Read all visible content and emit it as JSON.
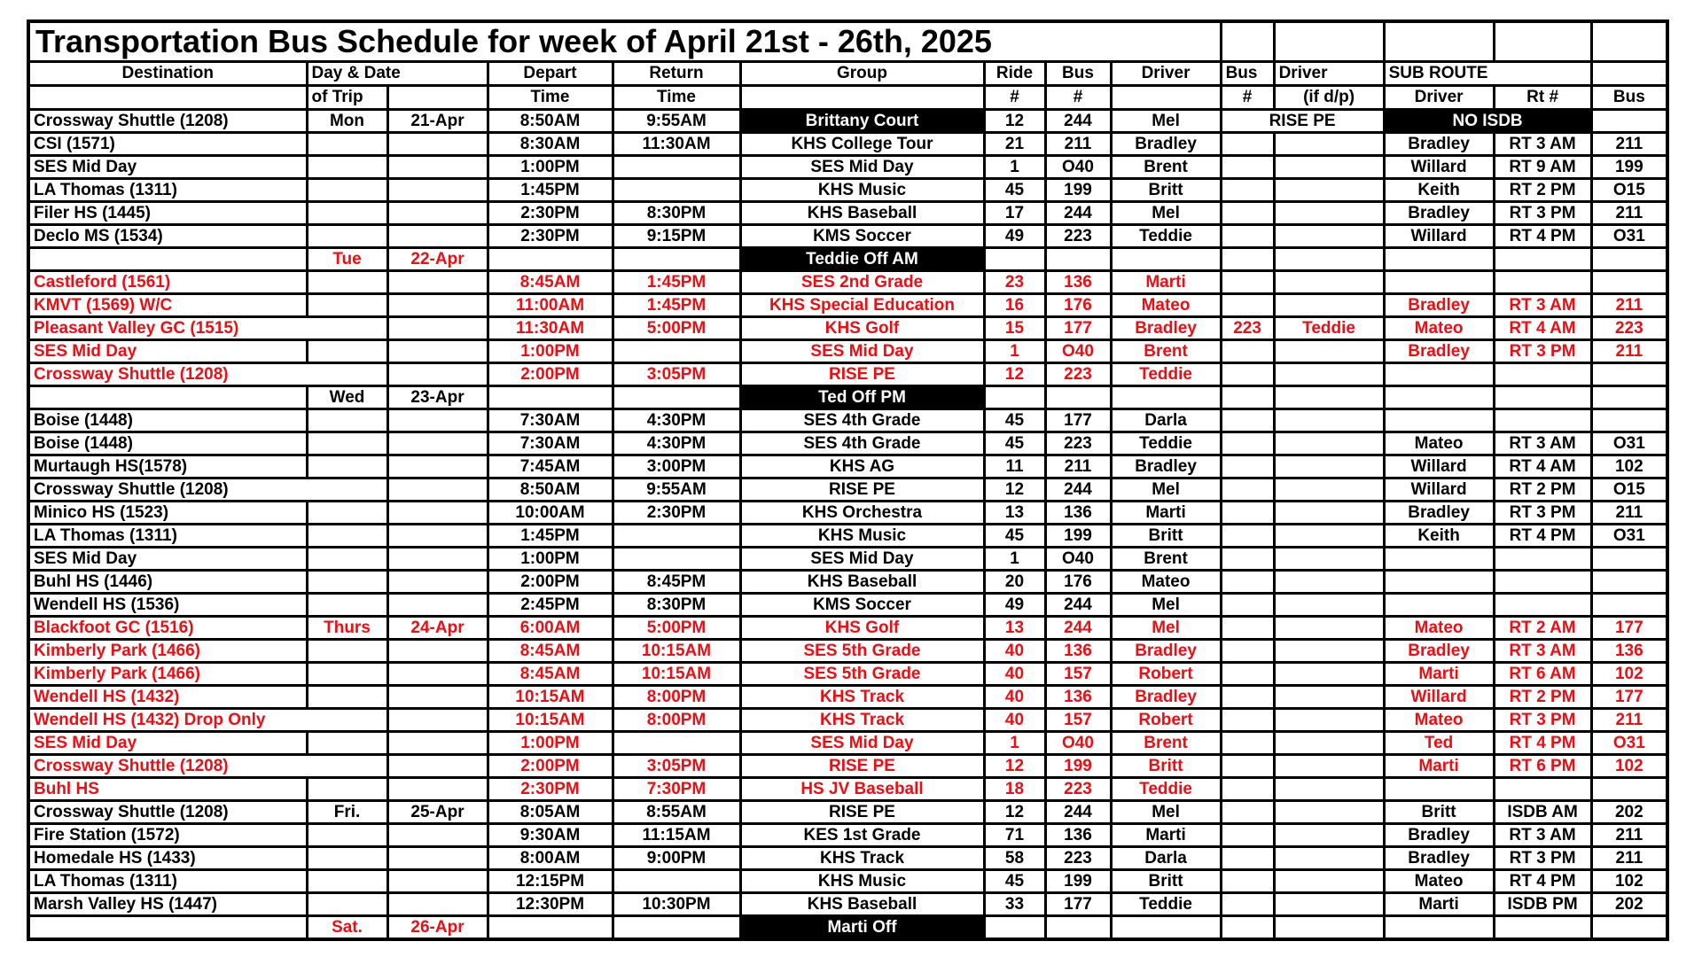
{
  "title": "Transportation Bus Schedule for week of April 21st - 26th, 2025",
  "colors": {
    "red": "#ee0d12",
    "highlight_bg": "#000000",
    "highlight_fg": "#ffffff",
    "grid": "#000000"
  },
  "header": {
    "destination": "Destination",
    "day_date": "Day & Date",
    "depart": "Depart",
    "return": "Return",
    "group": "Group",
    "ride": "Ride",
    "bus": "Bus",
    "driver": "Driver",
    "bus2": "Bus",
    "driver2": "Driver",
    "sub_route": "SUB ROUTE"
  },
  "header2": {
    "of_trip": "of Trip",
    "time": "Time",
    "hash": "#",
    "if_dp": "(if d/p)",
    "sub_driver": "Driver",
    "sub_rt": "Rt #",
    "sub_bus": "Bus"
  },
  "rows": [
    {
      "dest": "Crossway Shuttle (1208)",
      "day": "Mon",
      "date": "21-Apr",
      "depart": "8:50AM",
      "ret": "9:55AM",
      "group": "Brittany Court",
      "group_hl": true,
      "ride": "12",
      "bus": "244",
      "driver": "Mel",
      "mid_span": "RISE PE",
      "sub_span": "NO ISDB",
      "sub_bus": ""
    },
    {
      "dest": "CSI (1571)",
      "depart": "8:30AM",
      "ret": "11:30AM",
      "group": "KHS College Tour",
      "ride": "21",
      "bus": "211",
      "driver": "Bradley",
      "sub_driver": "Bradley",
      "sub_rt": "RT 3 AM",
      "sub_bus": "211"
    },
    {
      "dest": "SES Mid Day",
      "depart": "1:00PM",
      "group": "SES Mid Day",
      "ride": "1",
      "bus": "O40",
      "driver": "Brent",
      "sub_driver": "Willard",
      "sub_rt": "RT 9 AM",
      "sub_bus": "199"
    },
    {
      "dest": "LA Thomas (1311)",
      "depart": "1:45PM",
      "group": "KHS Music",
      "ride": "45",
      "bus": "199",
      "driver": "Britt",
      "sub_driver": "Keith",
      "sub_rt": "RT 2 PM",
      "sub_bus": "O15"
    },
    {
      "dest": "Filer HS (1445)",
      "depart": "2:30PM",
      "ret": "8:30PM",
      "group": "KHS Baseball",
      "ride": "17",
      "bus": "244",
      "driver": "Mel",
      "sub_driver": "Bradley",
      "sub_rt": "RT 3 PM",
      "sub_bus": "211"
    },
    {
      "dest": "Declo MS (1534)",
      "depart": "2:30PM",
      "ret": "9:15PM",
      "group": "KMS Soccer",
      "ride": "49",
      "bus": "223",
      "driver": "Teddie",
      "sub_driver": "Willard",
      "sub_rt": "RT 4 PM",
      "sub_bus": "O31"
    },
    {
      "day": "Tue",
      "date": "22-Apr",
      "group": "Teddie Off AM",
      "group_hl": true,
      "red": true
    },
    {
      "dest": "Castleford (1561)",
      "red": true,
      "depart": "8:45AM",
      "ret": "1:45PM",
      "group": "SES 2nd Grade",
      "ride": "23",
      "bus": "136",
      "driver": "Marti"
    },
    {
      "dest": "KMVT (1569) W/C",
      "red": true,
      "depart": "11:00AM",
      "ret": "1:45PM",
      "group": "KHS Special Education",
      "ride": "16",
      "bus": "176",
      "driver": "Mateo",
      "sub_driver": "Bradley",
      "sub_rt": "RT 3 AM",
      "sub_bus": "211"
    },
    {
      "dest": "Pleasant Valley GC (1515)",
      "red": true,
      "merge_dest": true,
      "depart": "11:30AM",
      "ret": "5:00PM",
      "group": "KHS Golf",
      "ride": "15",
      "bus": "177",
      "driver": "Bradley",
      "bus2": "223",
      "driver2": "Teddie",
      "sub_driver": "Mateo",
      "sub_rt": "RT 4 AM",
      "sub_bus": "223"
    },
    {
      "dest": "SES Mid Day",
      "red": true,
      "depart": "1:00PM",
      "group": "SES Mid Day",
      "ride": "1",
      "bus": "O40",
      "driver": "Brent",
      "sub_driver": "Bradley",
      "sub_rt": "RT 3 PM",
      "sub_bus": "211"
    },
    {
      "dest": "Crossway Shuttle (1208)",
      "red": true,
      "merge_dest": true,
      "depart": "2:00PM",
      "ret": "3:05PM",
      "group": "RISE PE",
      "ride": "12",
      "bus": "223",
      "driver": "Teddie"
    },
    {
      "day": "Wed",
      "date": "23-Apr",
      "group": "Ted Off PM",
      "group_hl": true
    },
    {
      "dest": "Boise (1448)",
      "depart": "7:30AM",
      "ret": "4:30PM",
      "group": "SES 4th Grade",
      "ride": "45",
      "bus": "177",
      "driver": "Darla"
    },
    {
      "dest": "Boise (1448)",
      "depart": "7:30AM",
      "ret": "4:30PM",
      "group": "SES 4th Grade",
      "ride": "45",
      "bus": "223",
      "driver": "Teddie",
      "sub_driver": "Mateo",
      "sub_rt": "RT 3 AM",
      "sub_bus": "O31"
    },
    {
      "dest": "Murtaugh HS(1578)",
      "depart": "7:45AM",
      "ret": "3:00PM",
      "group": "KHS AG",
      "ride": "11",
      "bus": "211",
      "driver": "Bradley",
      "sub_driver": "Willard",
      "sub_rt": "RT 4 AM",
      "sub_bus": "102"
    },
    {
      "dest": "Crossway Shuttle (1208)",
      "merge_dest": true,
      "depart": "8:50AM",
      "ret": "9:55AM",
      "group": "RISE PE",
      "ride": "12",
      "bus": "244",
      "driver": "Mel",
      "sub_driver": "Willard",
      "sub_rt": "RT 2 PM",
      "sub_bus": "O15"
    },
    {
      "dest": "Minico HS (1523)",
      "depart": "10:00AM",
      "ret": "2:30PM",
      "group": "KHS Orchestra",
      "ride": "13",
      "bus": "136",
      "driver": "Marti",
      "sub_driver": "Bradley",
      "sub_rt": "RT 3 PM",
      "sub_bus": "211"
    },
    {
      "dest": "LA Thomas (1311)",
      "depart": "1:45PM",
      "group": "KHS Music",
      "ride": "45",
      "bus": "199",
      "driver": "Britt",
      "sub_driver": "Keith",
      "sub_rt": "RT 4 PM",
      "sub_bus": "O31"
    },
    {
      "dest": "SES Mid Day",
      "depart": "1:00PM",
      "group": "SES Mid Day",
      "ride": "1",
      "bus": "O40",
      "driver": "Brent"
    },
    {
      "dest": "Buhl HS (1446)",
      "depart": "2:00PM",
      "ret": "8:45PM",
      "group": "KHS Baseball",
      "ride": "20",
      "bus": "176",
      "driver": "Mateo"
    },
    {
      "dest": "Wendell HS (1536)",
      "depart": "2:45PM",
      "ret": "8:30PM",
      "group": "KMS Soccer",
      "ride": "49",
      "bus": "244",
      "driver": "Mel"
    },
    {
      "dest": "Blackfoot GC (1516)",
      "red": true,
      "day": "Thurs",
      "date": "24-Apr",
      "depart": "6:00AM",
      "ret": "5:00PM",
      "group": "KHS Golf",
      "ride": "13",
      "bus": "244",
      "driver": "Mel",
      "sub_driver": "Mateo",
      "sub_rt": "RT 2 AM",
      "sub_bus": "177"
    },
    {
      "dest": "Kimberly Park (1466)",
      "red": true,
      "depart": "8:45AM",
      "ret": "10:15AM",
      "group": "SES 5th Grade",
      "ride": "40",
      "bus": "136",
      "driver": "Bradley",
      "sub_driver": "Bradley",
      "sub_rt": "RT 3 AM",
      "sub_bus": "136"
    },
    {
      "dest": "Kimberly Park (1466)",
      "red": true,
      "depart": "8:45AM",
      "ret": "10:15AM",
      "group": "SES 5th Grade",
      "ride": "40",
      "bus": "157",
      "driver": "Robert",
      "sub_driver": "Marti",
      "sub_rt": "RT 6 AM",
      "sub_bus": "102"
    },
    {
      "dest": "Wendell HS (1432)",
      "red": true,
      "depart": "10:15AM",
      "ret": "8:00PM",
      "group": "KHS Track",
      "ride": "40",
      "bus": "136",
      "driver": "Bradley",
      "sub_driver": "Willard",
      "sub_rt": "RT 2 PM",
      "sub_bus": "177"
    },
    {
      "dest": "Wendell HS (1432) Drop Only",
      "red": true,
      "merge_dest": true,
      "depart": "10:15AM",
      "ret": "8:00PM",
      "group": "KHS Track",
      "ride": "40",
      "bus": "157",
      "driver": "Robert",
      "sub_driver": "Mateo",
      "sub_rt": "RT 3 PM",
      "sub_bus": "211"
    },
    {
      "dest": "SES Mid Day",
      "red": true,
      "depart": "1:00PM",
      "group": "SES Mid Day",
      "ride": "1",
      "bus": "O40",
      "driver": "Brent",
      "sub_driver": "Ted",
      "sub_rt": "RT 4 PM",
      "sub_bus": "O31"
    },
    {
      "dest": "Crossway Shuttle (1208)",
      "red": true,
      "merge_dest": true,
      "depart": "2:00PM",
      "ret": "3:05PM",
      "group": "RISE PE",
      "ride": "12",
      "bus": "199",
      "driver": "Britt",
      "sub_driver": "Marti",
      "sub_rt": "RT 6 PM",
      "sub_bus": "102"
    },
    {
      "dest": "Buhl HS",
      "red": true,
      "depart": "2:30PM",
      "ret": "7:30PM",
      "group": "HS JV Baseball",
      "ride": "18",
      "bus": "223",
      "driver": "Teddie"
    },
    {
      "dest": "Crossway Shuttle (1208)",
      "day": "Fri.",
      "date": "25-Apr",
      "depart": "8:05AM",
      "ret": "8:55AM",
      "group": "RISE PE",
      "ride": "12",
      "bus": "244",
      "driver": "Mel",
      "sub_driver": "Britt",
      "sub_rt": "ISDB AM",
      "sub_bus": "202"
    },
    {
      "dest": "Fire Station (1572)",
      "depart": "9:30AM",
      "ret": "11:15AM",
      "group": "KES 1st Grade",
      "ride": "71",
      "bus": "136",
      "driver": "Marti",
      "sub_driver": "Bradley",
      "sub_rt": "RT 3 AM",
      "sub_bus": "211"
    },
    {
      "dest": "Homedale HS (1433)",
      "depart": "8:00AM",
      "ret": "9:00PM",
      "group": "KHS Track",
      "ride": "58",
      "bus": "223",
      "driver": "Darla",
      "sub_driver": "Bradley",
      "sub_rt": "RT 3 PM",
      "sub_bus": "211"
    },
    {
      "dest": "LA Thomas (1311)",
      "depart": "12:15PM",
      "group": "KHS Music",
      "ride": "45",
      "bus": "199",
      "driver": "Britt",
      "sub_driver": "Mateo",
      "sub_rt": "RT 4 PM",
      "sub_bus": "102"
    },
    {
      "dest": "Marsh Valley HS (1447)",
      "depart": "12:30PM",
      "ret": "10:30PM",
      "group": "KHS Baseball",
      "ride": "33",
      "bus": "177",
      "driver": "Teddie",
      "sub_driver": "Marti",
      "sub_rt": "ISDB PM",
      "sub_bus": "202"
    },
    {
      "day": "Sat.",
      "date": "26-Apr",
      "group": "Marti Off",
      "group_hl": true,
      "red": true
    }
  ]
}
